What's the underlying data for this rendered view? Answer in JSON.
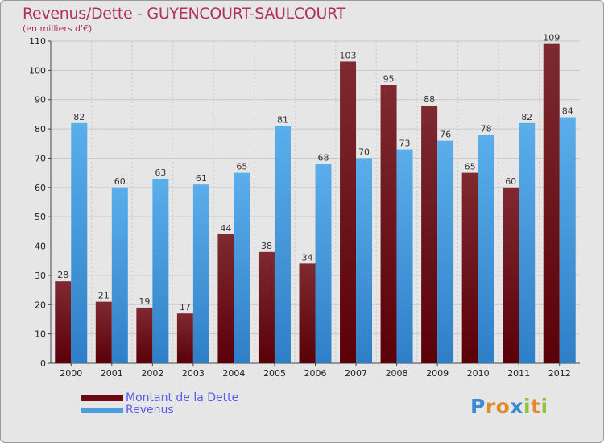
{
  "chart_data": {
    "type": "bar",
    "title": "Revenus/Dette - GUYENCOURT-SAULCOURT",
    "subtitle": "(en milliers d'€)",
    "categories": [
      "2000",
      "2001",
      "2002",
      "2003",
      "2004",
      "2005",
      "2006",
      "2007",
      "2008",
      "2009",
      "2010",
      "2011",
      "2012"
    ],
    "series": [
      {
        "name": "Montant de la Dette",
        "color": "#7a1218",
        "values": [
          28,
          21,
          19,
          17,
          44,
          38,
          34,
          103,
          95,
          88,
          65,
          60,
          109
        ]
      },
      {
        "name": "Revenus",
        "color": "#4a9ee0",
        "values": [
          82,
          60,
          63,
          61,
          65,
          81,
          68,
          70,
          73,
          76,
          78,
          82,
          84
        ]
      }
    ],
    "ylim": [
      0,
      110
    ],
    "yticks": [
      0,
      10,
      20,
      30,
      40,
      50,
      60,
      70,
      80,
      90,
      100,
      110
    ],
    "grid": true,
    "legend": "bottom-left"
  },
  "logo": {
    "text": "Proxiti",
    "letters": [
      "P",
      "r",
      "o",
      "x",
      "i",
      "t",
      "i"
    ],
    "colors": [
      "#3a8ad8",
      "#e2892a",
      "#e2892a",
      "#3a8ad8",
      "#8cc63f",
      "#e2892a",
      "#8cc63f"
    ]
  }
}
